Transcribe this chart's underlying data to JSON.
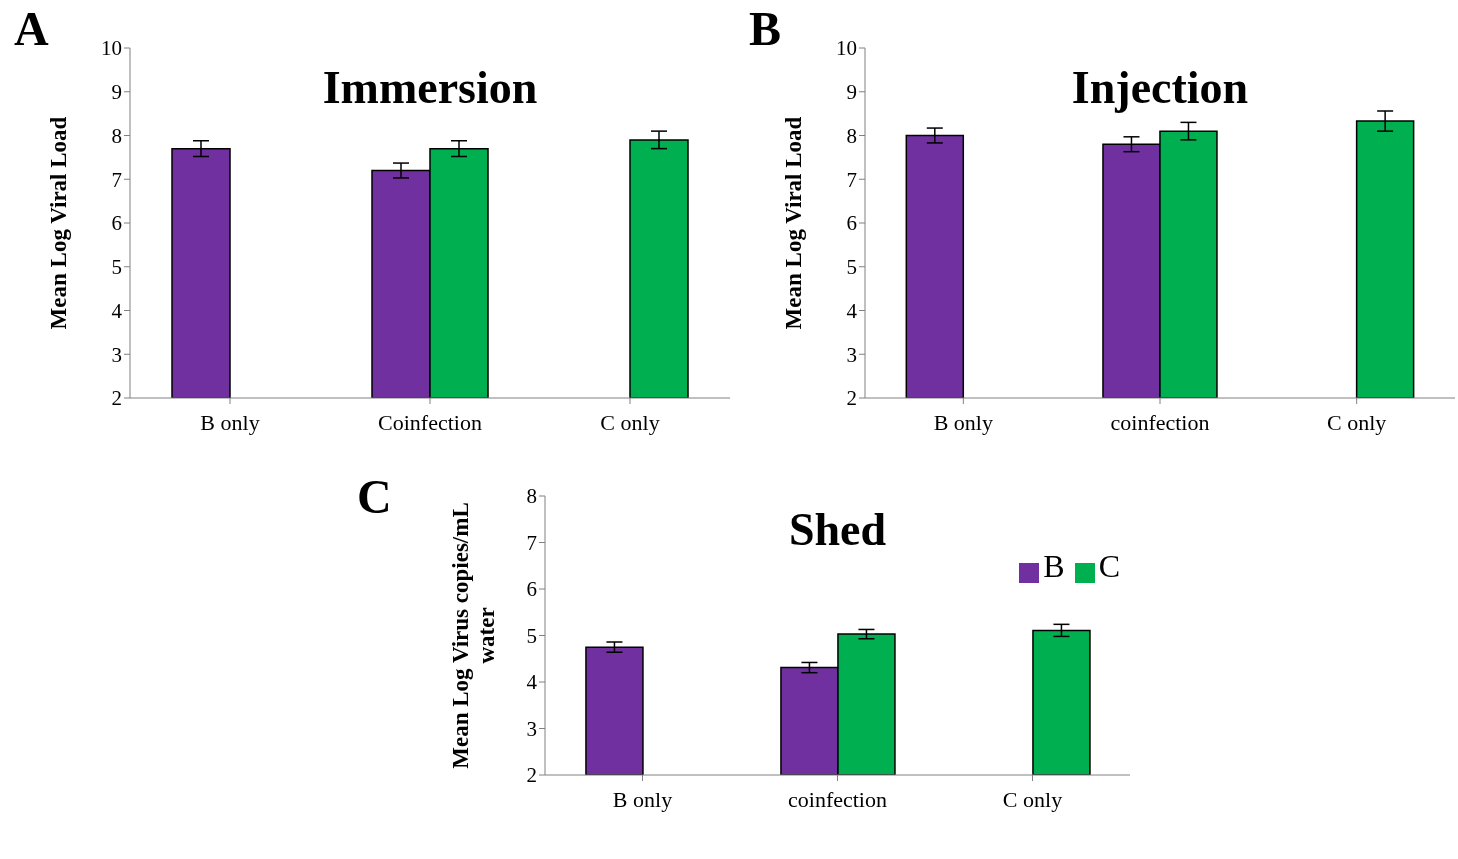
{
  "chart_data": [
    {
      "type": "bar",
      "title": "Immersion",
      "ylabel": "Mean Log Viral Load",
      "annotations": [
        "A"
      ],
      "categories": [
        "B only",
        "Coinfection",
        "C only"
      ],
      "ylim": [
        2,
        10
      ],
      "yticks": [
        2,
        3,
        4,
        5,
        6,
        7,
        8,
        9,
        10
      ],
      "series": [
        {
          "color": "#7030a0",
          "values": [
            7.7,
            7.2,
            null
          ],
          "errors": [
            0.18,
            0.17,
            null
          ]
        },
        {
          "color": "#00b050",
          "values": [
            null,
            7.7,
            7.9
          ],
          "errors": [
            null,
            0.18,
            0.2
          ]
        }
      ]
    },
    {
      "type": "bar",
      "title": "Injection",
      "ylabel": "Mean Log Viral Load",
      "annotations": [
        "B"
      ],
      "categories": [
        "B only",
        "coinfection",
        "C only"
      ],
      "ylim": [
        2,
        10
      ],
      "yticks": [
        2,
        3,
        4,
        5,
        6,
        7,
        8,
        9,
        10
      ],
      "series": [
        {
          "color": "#7030a0",
          "values": [
            8.0,
            7.8,
            null
          ],
          "errors": [
            0.17,
            0.17,
            null
          ]
        },
        {
          "color": "#00b050",
          "values": [
            null,
            8.1,
            8.33
          ],
          "errors": [
            null,
            0.2,
            0.23
          ]
        }
      ]
    },
    {
      "type": "bar",
      "title": "Shed",
      "ylabel": "Mean Log Virus copies/mL water",
      "annotations": [
        "C"
      ],
      "categories": [
        "B only",
        "coinfection",
        "C only"
      ],
      "ylim": [
        2,
        8
      ],
      "yticks": [
        2,
        3,
        4,
        5,
        6,
        7,
        8
      ],
      "legend": "top right",
      "series": [
        {
          "name": "B",
          "color": "#7030a0",
          "values": [
            4.75,
            4.31,
            null
          ],
          "errors": [
            0.11,
            0.11,
            null
          ]
        },
        {
          "name": "C",
          "color": "#00b050",
          "values": [
            null,
            5.03,
            5.11
          ],
          "errors": [
            null,
            0.1,
            0.13
          ]
        }
      ]
    }
  ]
}
